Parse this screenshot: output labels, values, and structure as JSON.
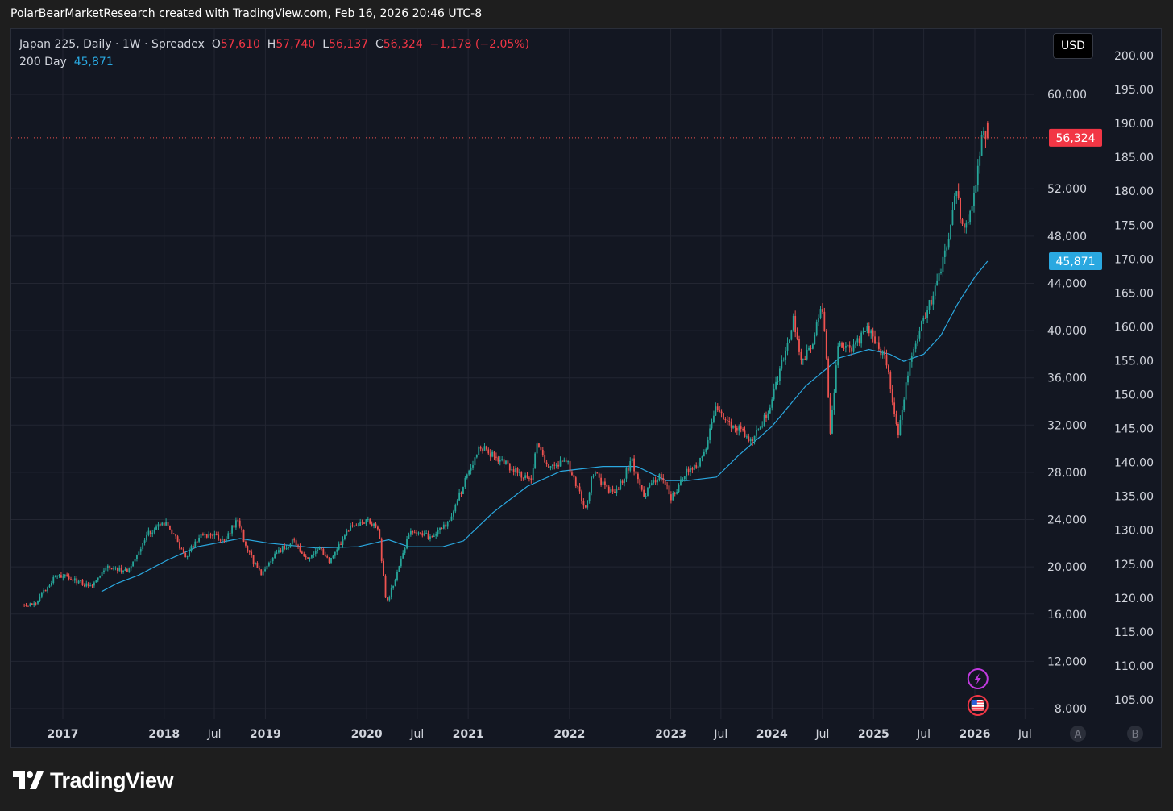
{
  "header": {
    "caption": "PolarBearMarketResearch created with TradingView.com, Feb 16, 2026 20:46 UTC-8"
  },
  "legend": {
    "symbol": "Japan 225, Daily · 1W · Spreadex",
    "open_label": "O",
    "open": "57,610",
    "high_label": "H",
    "high": "57,740",
    "low_label": "L",
    "low": "56,137",
    "close_label": "C",
    "close": "56,324",
    "change": "−1,178 (−2.05%)",
    "ma_name": "200 Day",
    "ma_value": "45,871"
  },
  "currency_button": "USD",
  "brand": {
    "name": "TradingView"
  },
  "scale_buttons": {
    "a": "A",
    "b": "B"
  },
  "colors": {
    "up": "#26a69a",
    "down": "#ef5350",
    "ma": "#2aa8e0",
    "background": "#131722",
    "grid": "#232632",
    "text": "#d1d4dc"
  },
  "chart_data": {
    "type": "candlestick",
    "title": "Japan 225, Daily · 1W · Spreadex",
    "timeframe": "1W",
    "x_tick_labels": [
      "2017",
      "2018",
      "Jul",
      "2019",
      "2020",
      "Jul",
      "2021",
      "2022",
      "2023",
      "Jul",
      "2024",
      "Jul",
      "2025",
      "Jul",
      "2026",
      "Jul"
    ],
    "x_tick_dates": [
      "2017-01-01",
      "2018-01-01",
      "2018-07-01",
      "2019-01-01",
      "2020-01-01",
      "2020-07-01",
      "2021-01-01",
      "2022-01-01",
      "2023-01-01",
      "2023-07-01",
      "2024-01-01",
      "2024-07-01",
      "2025-01-01",
      "2025-07-01",
      "2026-01-01",
      "2026-07-01"
    ],
    "y_left_ticks": [
      "60,000",
      "52,000",
      "48,000",
      "44,000",
      "40,000",
      "36,000",
      "32,000",
      "28,000",
      "24,000",
      "20,000",
      "16,000",
      "12,000",
      "8,000"
    ],
    "y_left_values": [
      60000,
      52000,
      48000,
      44000,
      40000,
      36000,
      32000,
      28000,
      24000,
      20000,
      16000,
      12000,
      8000
    ],
    "y_right_ticks": [
      "200.00",
      "195.00",
      "190.00",
      "185.00",
      "180.00",
      "175.00",
      "170.00",
      "165.00",
      "160.00",
      "155.00",
      "150.00",
      "145.00",
      "140.00",
      "135.00",
      "130.00",
      "125.00",
      "120.00",
      "115.00",
      "110.00",
      "105.00"
    ],
    "y_right_values": [
      200,
      195,
      190,
      185,
      180,
      175,
      170,
      165,
      160,
      155,
      150,
      145,
      140,
      135,
      130,
      125,
      120,
      115,
      110,
      105
    ],
    "ylim": [
      7000,
      61000
    ],
    "grid": true,
    "last_price": {
      "label": "56,324",
      "value": 56324
    },
    "ma_price": {
      "label": "45,871",
      "value": 45871
    },
    "series": [
      {
        "name": "Japan 225",
        "anchors": [
          [
            "2016-08-15",
            16800
          ],
          [
            "2016-10-01",
            16900
          ],
          [
            "2016-12-20",
            19400
          ],
          [
            "2017-04-15",
            18400
          ],
          [
            "2017-06-20",
            20100
          ],
          [
            "2017-09-01",
            19500
          ],
          [
            "2017-11-10",
            22800
          ],
          [
            "2018-01-20",
            23800
          ],
          [
            "2018-03-25",
            20800
          ],
          [
            "2018-05-20",
            22800
          ],
          [
            "2018-08-15",
            22400
          ],
          [
            "2018-10-01",
            24100
          ],
          [
            "2018-10-28",
            21800
          ],
          [
            "2018-12-25",
            19200
          ],
          [
            "2019-02-20",
            21300
          ],
          [
            "2019-04-25",
            22200
          ],
          [
            "2019-06-05",
            20500
          ],
          [
            "2019-07-20",
            21600
          ],
          [
            "2019-08-25",
            20500
          ],
          [
            "2019-11-10",
            23300
          ],
          [
            "2020-01-15",
            23900
          ],
          [
            "2020-02-20",
            23300
          ],
          [
            "2020-03-19",
            16700
          ],
          [
            "2020-04-25",
            19500
          ],
          [
            "2020-06-10",
            22800
          ],
          [
            "2020-08-15",
            22600
          ],
          [
            "2020-10-25",
            23500
          ],
          [
            "2020-12-31",
            27400
          ],
          [
            "2021-02-20",
            30200
          ],
          [
            "2021-04-10",
            29500
          ],
          [
            "2021-08-20",
            27200
          ],
          [
            "2021-09-15",
            30500
          ],
          [
            "2021-10-20",
            28500
          ],
          [
            "2021-12-31",
            28800
          ],
          [
            "2022-03-08",
            25000
          ],
          [
            "2022-04-01",
            28000
          ],
          [
            "2022-06-20",
            26000
          ],
          [
            "2022-08-20",
            29000
          ],
          [
            "2022-10-01",
            25900
          ],
          [
            "2022-12-01",
            28000
          ],
          [
            "2023-01-10",
            25800
          ],
          [
            "2023-03-10",
            28300
          ],
          [
            "2023-04-30",
            29000
          ],
          [
            "2023-06-20",
            33500
          ],
          [
            "2023-08-15",
            32000
          ],
          [
            "2023-10-30",
            30600
          ],
          [
            "2023-12-31",
            33400
          ],
          [
            "2024-03-25",
            40800
          ],
          [
            "2024-04-20",
            37400
          ],
          [
            "2024-06-01",
            38900
          ],
          [
            "2024-07-11",
            42200
          ],
          [
            "2024-08-05",
            31500
          ],
          [
            "2024-09-01",
            38600
          ],
          [
            "2024-10-20",
            38500
          ],
          [
            "2024-12-25",
            40300
          ],
          [
            "2025-02-25",
            37200
          ],
          [
            "2025-04-07",
            31000
          ],
          [
            "2025-05-20",
            37600
          ],
          [
            "2025-06-30",
            40400
          ],
          [
            "2025-08-20",
            43500
          ],
          [
            "2025-10-10",
            48500
          ],
          [
            "2025-10-31",
            52000
          ],
          [
            "2025-11-25",
            49000
          ],
          [
            "2025-12-31",
            50400
          ],
          [
            "2026-01-20",
            53600
          ],
          [
            "2026-02-09",
            57500
          ],
          [
            "2026-02-16",
            56324
          ]
        ]
      },
      {
        "name": "200 Day",
        "points": [
          [
            "2017-05-20",
            17900
          ],
          [
            "2017-07-15",
            18600
          ],
          [
            "2017-10-01",
            19300
          ],
          [
            "2018-01-15",
            20600
          ],
          [
            "2018-05-01",
            21700
          ],
          [
            "2018-10-01",
            22400
          ],
          [
            "2019-01-15",
            22000
          ],
          [
            "2019-07-01",
            21600
          ],
          [
            "2019-12-01",
            21700
          ],
          [
            "2020-03-20",
            22300
          ],
          [
            "2020-06-01",
            21700
          ],
          [
            "2020-10-01",
            21700
          ],
          [
            "2020-12-15",
            22200
          ],
          [
            "2021-04-01",
            24600
          ],
          [
            "2021-08-01",
            26800
          ],
          [
            "2021-12-01",
            28100
          ],
          [
            "2022-05-01",
            28500
          ],
          [
            "2022-09-01",
            28500
          ],
          [
            "2022-12-15",
            27300
          ],
          [
            "2023-03-01",
            27300
          ],
          [
            "2023-06-15",
            27600
          ],
          [
            "2023-09-01",
            29400
          ],
          [
            "2024-01-01",
            31900
          ],
          [
            "2024-05-01",
            35300
          ],
          [
            "2024-09-01",
            37700
          ],
          [
            "2024-12-15",
            38400
          ],
          [
            "2025-03-01",
            38000
          ],
          [
            "2025-04-20",
            37400
          ],
          [
            "2025-07-01",
            38000
          ],
          [
            "2025-09-01",
            39600
          ],
          [
            "2025-11-01",
            42300
          ],
          [
            "2025-12-31",
            44500
          ],
          [
            "2026-02-16",
            45871
          ]
        ]
      }
    ],
    "events": [
      {
        "type": "event-flash-icon",
        "date": "2026-01-12"
      },
      {
        "type": "event-us-flag-icon",
        "date": "2026-01-12"
      }
    ]
  }
}
